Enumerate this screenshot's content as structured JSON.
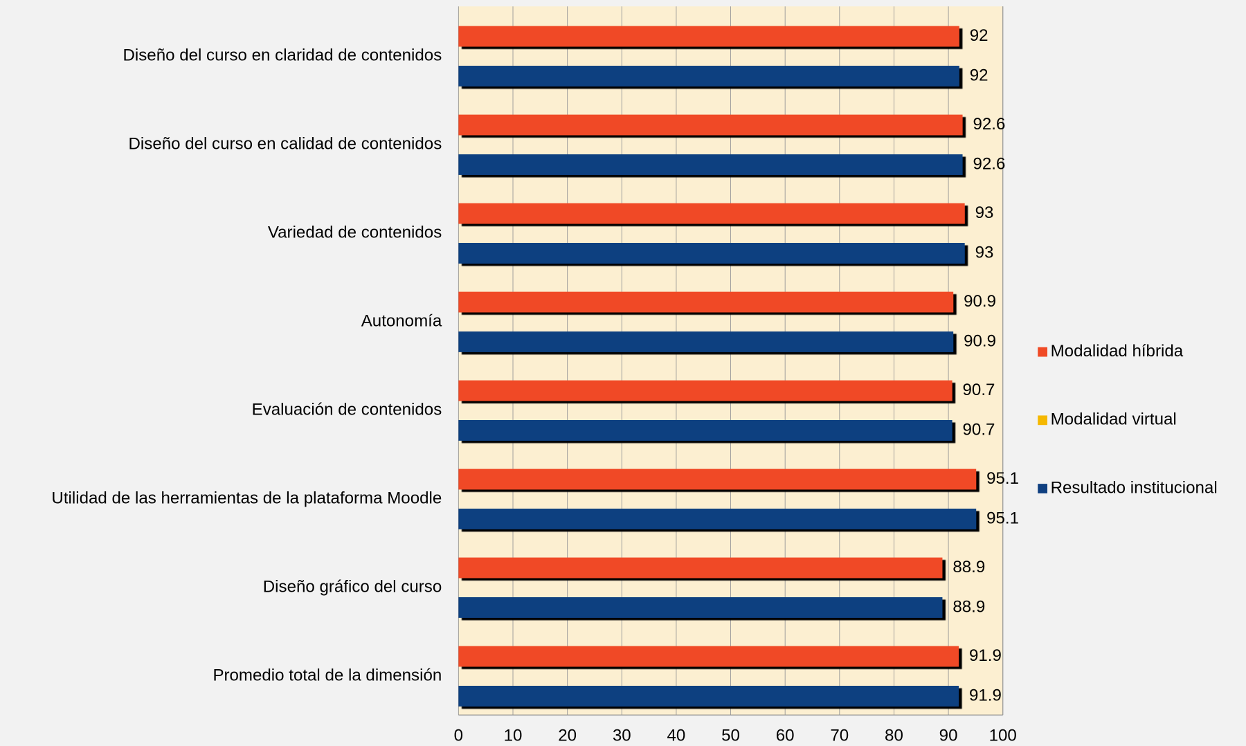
{
  "chart_data": {
    "type": "bar",
    "orientation": "horizontal",
    "categories": [
      "Diseño del curso en claridad de contenidos",
      "Diseño del curso en calidad de contenidos",
      "Variedad de contenidos",
      "Autonomía",
      "Evaluación de contenidos",
      "Utilidad de las herramientas de la plataforma Moodle",
      "Diseño gráfico del curso",
      "Promedio total de la dimensión"
    ],
    "series": [
      {
        "name": "Modalidad híbrida",
        "color": "#f04a25",
        "values": [
          92,
          92.6,
          93,
          90.9,
          90.7,
          95.1,
          88.9,
          91.9
        ]
      },
      {
        "name": "Modalidad virtual",
        "color": "#f5b800",
        "values": [
          null,
          null,
          null,
          null,
          null,
          null,
          null,
          null
        ]
      },
      {
        "name": "Resultado institucional",
        "color": "#0f3f80",
        "values": [
          92,
          92.6,
          93,
          90.9,
          90.7,
          95.1,
          88.9,
          91.9
        ]
      }
    ],
    "xlim": [
      0,
      100
    ],
    "xticks": [
      0,
      10,
      20,
      30,
      40,
      50,
      60,
      70,
      80,
      90,
      100
    ],
    "grid": true,
    "legend": "right"
  }
}
